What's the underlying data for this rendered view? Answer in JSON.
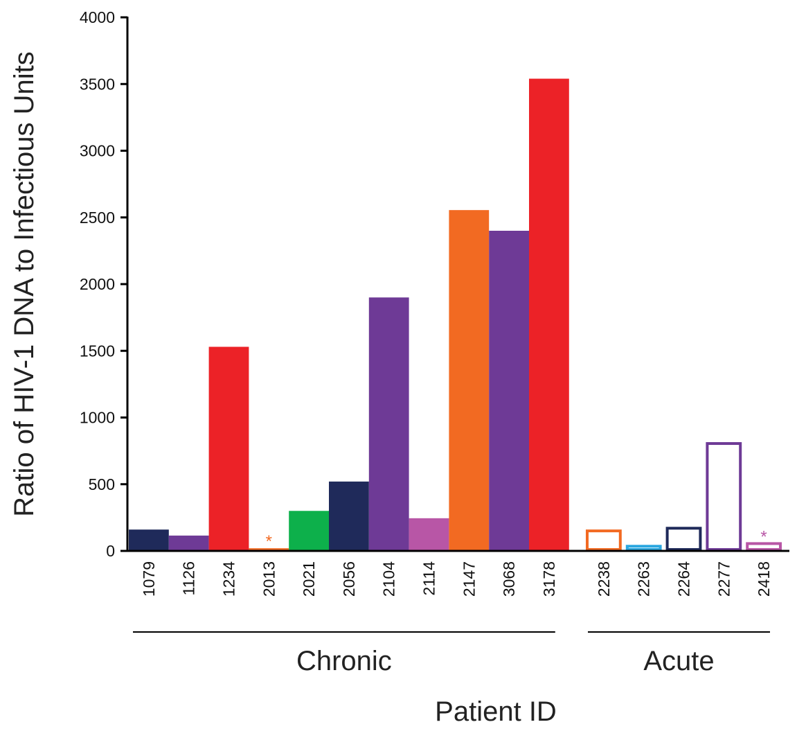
{
  "chart_data": {
    "type": "bar",
    "title": "",
    "ylabel": "Ratio of HIV-1 DNA to Infectious Units",
    "xlabel": "Patient ID",
    "ylim": [
      0,
      4000
    ],
    "yticks": [
      0,
      500,
      1000,
      1500,
      2000,
      2500,
      3000,
      3500,
      4000
    ],
    "grid": false,
    "groups": [
      {
        "name": "Chronic",
        "bars": [
          {
            "id": "1079",
            "value": 160,
            "color": "#1f2a5a",
            "fill": "solid"
          },
          {
            "id": "1126",
            "value": 115,
            "color": "#6e3a96",
            "fill": "solid"
          },
          {
            "id": "1234",
            "value": 1530,
            "color": "#ec2227",
            "fill": "solid"
          },
          {
            "id": "2013",
            "value": 20,
            "color": "#f26a22",
            "fill": "solid",
            "marker": "*"
          },
          {
            "id": "2021",
            "value": 300,
            "color": "#0db04b",
            "fill": "solid"
          },
          {
            "id": "2056",
            "value": 520,
            "color": "#1f2a5a",
            "fill": "solid"
          },
          {
            "id": "2104",
            "value": 1900,
            "color": "#6e3a96",
            "fill": "solid"
          },
          {
            "id": "2114",
            "value": 245,
            "color": "#b856a6",
            "fill": "solid"
          },
          {
            "id": "2147",
            "value": 2555,
            "color": "#f26a22",
            "fill": "solid"
          },
          {
            "id": "3068",
            "value": 2400,
            "color": "#6e3a96",
            "fill": "solid"
          },
          {
            "id": "3178",
            "value": 3540,
            "color": "#ec2227",
            "fill": "solid"
          }
        ]
      },
      {
        "name": "Acute",
        "bars": [
          {
            "id": "2238",
            "value": 150,
            "color": "#f26a22",
            "fill": "outline"
          },
          {
            "id": "2263",
            "value": 35,
            "color": "#2aa7e0",
            "fill": "outline"
          },
          {
            "id": "2264",
            "value": 170,
            "color": "#1f2a5a",
            "fill": "outline"
          },
          {
            "id": "2277",
            "value": 805,
            "color": "#6e3a96",
            "fill": "outline"
          },
          {
            "id": "2418",
            "value": 55,
            "color": "#b856a6",
            "fill": "outline",
            "marker": "*"
          }
        ]
      }
    ]
  }
}
